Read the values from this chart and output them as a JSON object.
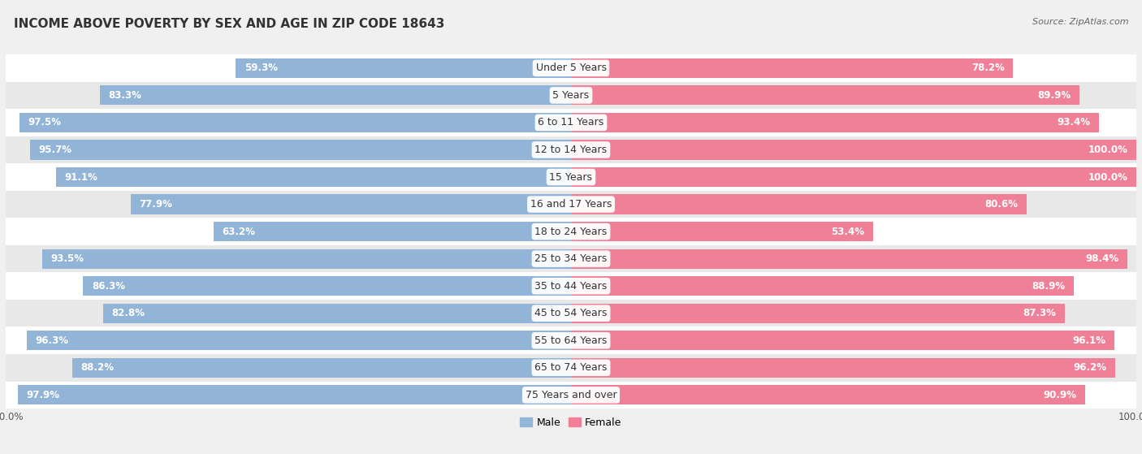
{
  "title": "INCOME ABOVE POVERTY BY SEX AND AGE IN ZIP CODE 18643",
  "source": "Source: ZipAtlas.com",
  "categories": [
    "Under 5 Years",
    "5 Years",
    "6 to 11 Years",
    "12 to 14 Years",
    "15 Years",
    "16 and 17 Years",
    "18 to 24 Years",
    "25 to 34 Years",
    "35 to 44 Years",
    "45 to 54 Years",
    "55 to 64 Years",
    "65 to 74 Years",
    "75 Years and over"
  ],
  "male_values": [
    59.3,
    83.3,
    97.5,
    95.7,
    91.1,
    77.9,
    63.2,
    93.5,
    86.3,
    82.8,
    96.3,
    88.2,
    97.9
  ],
  "female_values": [
    78.2,
    89.9,
    93.4,
    100.0,
    100.0,
    80.6,
    53.4,
    98.4,
    88.9,
    87.3,
    96.1,
    96.2,
    90.9
  ],
  "male_color": "#92b4d7",
  "female_color": "#f08098",
  "male_light_color": "#c5d8ec",
  "female_light_color": "#f8c0cc",
  "male_label": "Male",
  "female_label": "Female",
  "background_color": "#f0f0f0",
  "row_colors": [
    "#ffffff",
    "#e8e8e8"
  ],
  "title_fontsize": 11,
  "label_fontsize": 9,
  "value_fontsize": 8.5,
  "source_fontsize": 8
}
